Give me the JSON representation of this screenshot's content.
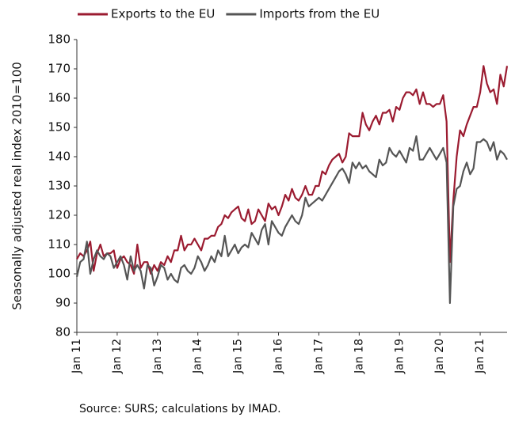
{
  "chart_data": {
    "type": "line",
    "y_axis_label": "Seasonally adjusted real index 2010=100",
    "source": "Source: SURS; calculations by IMAD.",
    "categories": [
      "Jan 11",
      null,
      null,
      null,
      null,
      null,
      null,
      null,
      null,
      null,
      null,
      null,
      "Jan 12",
      null,
      null,
      null,
      null,
      null,
      null,
      null,
      null,
      null,
      null,
      null,
      "Jan 13",
      null,
      null,
      null,
      null,
      null,
      null,
      null,
      null,
      null,
      null,
      null,
      "Jan 14",
      null,
      null,
      null,
      null,
      null,
      null,
      null,
      null,
      null,
      null,
      null,
      "Jan 15",
      null,
      null,
      null,
      null,
      null,
      null,
      null,
      null,
      null,
      null,
      null,
      "Jan 16",
      null,
      null,
      null,
      null,
      null,
      null,
      null,
      null,
      null,
      null,
      null,
      "Jan 17",
      null,
      null,
      null,
      null,
      null,
      null,
      null,
      null,
      null,
      null,
      null,
      "Jan 18",
      null,
      null,
      null,
      null,
      null,
      null,
      null,
      null,
      null,
      null,
      null,
      "Jan 19",
      null,
      null,
      null,
      null,
      null,
      null,
      null,
      null,
      null,
      null,
      null,
      "Jan 20",
      null,
      null,
      null,
      null,
      null,
      null,
      null,
      null,
      null,
      null,
      null,
      "Jan 21",
      null,
      null,
      null,
      null,
      null,
      null,
      null,
      null
    ],
    "series": [
      {
        "name": "Exports to the EU",
        "color": "#9b1b30",
        "values": [
          105,
          107,
          106,
          108,
          111,
          101,
          107,
          110,
          106,
          107,
          107,
          108,
          102,
          105,
          106,
          104,
          103,
          100,
          110,
          102,
          104,
          104,
          100,
          103,
          101,
          104,
          103,
          106,
          104,
          108,
          108,
          113,
          108,
          110,
          110,
          112,
          110,
          108,
          112,
          112,
          113,
          113,
          116,
          117,
          120,
          119,
          121,
          122,
          123,
          119,
          118,
          122,
          117,
          118,
          122,
          120,
          118,
          124,
          122,
          123,
          120,
          123,
          127,
          125,
          129,
          126,
          125,
          127,
          130,
          127,
          127,
          130,
          130,
          135,
          134,
          137,
          139,
          140,
          141,
          138,
          140,
          148,
          147,
          147,
          147,
          155,
          151,
          149,
          152,
          154,
          151,
          155,
          155,
          156,
          152,
          157,
          156,
          160,
          162,
          162,
          161,
          163,
          158,
          162,
          158,
          158,
          157,
          158,
          158,
          161,
          152,
          104,
          125,
          140,
          149,
          147,
          151,
          154,
          157,
          157,
          162,
          171,
          165,
          162,
          163,
          158,
          168,
          164,
          171
        ]
      },
      {
        "name": "Imports from the EU",
        "color": "#555555",
        "values": [
          99,
          104,
          105,
          111,
          100,
          105,
          108,
          106,
          105,
          107,
          106,
          102,
          104,
          106,
          103,
          98,
          106,
          101,
          103,
          101,
          95,
          103,
          102,
          96,
          99,
          103,
          102,
          98,
          100,
          98,
          97,
          102,
          103,
          101,
          100,
          102,
          106,
          104,
          101,
          103,
          106,
          104,
          108,
          106,
          113,
          106,
          108,
          110,
          107,
          109,
          110,
          109,
          114,
          112,
          110,
          115,
          117,
          110,
          118,
          116,
          114,
          113,
          116,
          118,
          120,
          118,
          117,
          120,
          126,
          123,
          124,
          125,
          126,
          125,
          127,
          129,
          131,
          133,
          135,
          136,
          134,
          131,
          138,
          136,
          138,
          136,
          137,
          135,
          134,
          133,
          139,
          137,
          138,
          143,
          141,
          140,
          142,
          140,
          138,
          143,
          142,
          147,
          139,
          139,
          141,
          143,
          141,
          139,
          141,
          143,
          138,
          90,
          123,
          129,
          130,
          135,
          138,
          134,
          136,
          145,
          145,
          146,
          145,
          142,
          145,
          139,
          142,
          141,
          139
        ]
      }
    ],
    "ylim": [
      80,
      180
    ],
    "yticks": [
      80,
      90,
      100,
      110,
      120,
      130,
      140,
      150,
      160,
      170,
      180
    ]
  }
}
